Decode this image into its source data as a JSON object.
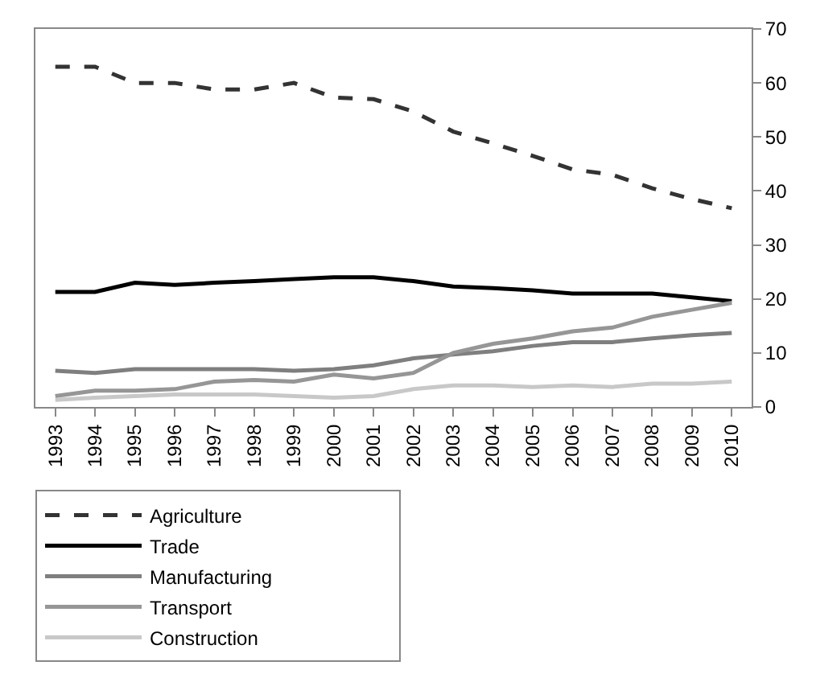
{
  "chart_data": {
    "type": "line",
    "categories": [
      "1993",
      "1994",
      "1995",
      "1996",
      "1997",
      "1998",
      "1999",
      "2000",
      "2001",
      "2002",
      "2003",
      "2004",
      "2005",
      "2006",
      "2007",
      "2008",
      "2009",
      "2010"
    ],
    "series": [
      {
        "name": "Agriculture",
        "color": "#333333",
        "line_style": "dashed",
        "values": [
          63,
          63,
          60,
          60,
          58.8,
          58.8,
          60,
          57.3,
          57,
          54.7,
          51,
          48.8,
          46.5,
          44,
          43,
          40.5,
          38.5,
          36.8
        ]
      },
      {
        "name": "Trade",
        "color": "#000000",
        "values": [
          21.3,
          21.3,
          23,
          22.6,
          23,
          23.3,
          23.7,
          24,
          24,
          23.3,
          22.3,
          22,
          21.6,
          21,
          21,
          21,
          20.3,
          19.6
        ]
      },
      {
        "name": "Manufacturing",
        "color": "#7f7f7f",
        "values": [
          6.7,
          6.3,
          7,
          7,
          7,
          7,
          6.7,
          7,
          7.7,
          9,
          9.7,
          10.3,
          11.3,
          12,
          12,
          12.7,
          13.3,
          13.7
        ]
      },
      {
        "name": "Transport",
        "color": "#969696",
        "values": [
          2,
          3,
          3,
          3.3,
          4.7,
          5,
          4.7,
          6,
          5.3,
          6.3,
          10,
          11.7,
          12.7,
          14,
          14.7,
          16.7,
          18,
          19.3
        ]
      },
      {
        "name": "Construction",
        "color": "#c8c8c8",
        "values": [
          1.3,
          1.7,
          2,
          2.3,
          2.3,
          2.3,
          2,
          1.7,
          2,
          3.3,
          4,
          4,
          3.7,
          4,
          3.7,
          4.3,
          4.3,
          4.7
        ]
      }
    ],
    "ylim": [
      0,
      70
    ],
    "yticks": [
      0,
      10,
      20,
      30,
      40,
      50,
      60,
      70
    ],
    "grid": false,
    "legend": "bottom",
    "marker": "none",
    "line_style": "solid"
  }
}
